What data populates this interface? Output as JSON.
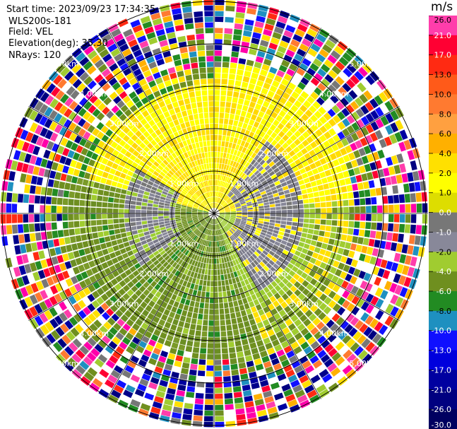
{
  "header": {
    "start_time": "Start time: 2023/09/23 17:34:35",
    "instrument": "WLS200s-181",
    "field": "Field: VEL",
    "elevation": "Elevation(deg): 35.30",
    "nrays": "NRays: 120"
  },
  "colorbar": {
    "unit": "m/s",
    "ticks": [
      "26.0",
      "21.0",
      "17.0",
      "13.0",
      "10.0",
      "8.0",
      "6.0",
      "4.0",
      "2.0",
      "1.0",
      "0.0",
      "-1.0",
      "-2.0",
      "-4.0",
      "-6.0",
      "-8.0",
      "-10.0",
      "-13.0",
      "-17.0",
      "-21.0",
      "-26.0",
      "-30.0"
    ],
    "colors": [
      "#ff3dab",
      "#ff0033",
      "#ff2a12",
      "#ff5a19",
      "#ff7a30",
      "#ffa040",
      "#ffb000",
      "#ffe000",
      "#ffff00",
      "#dddd00",
      "#777777",
      "#888899",
      "#a0cc30",
      "#6f8f1f",
      "#228b22",
      "#1e90c0",
      "#1010ff",
      "#0000dd",
      "#0000a0",
      "#000080",
      "#000060"
    ]
  },
  "chart_data": {
    "type": "heatmap",
    "projection": "polar PPI",
    "field": "VEL",
    "nrays": 120,
    "range_ring_labels": [
      "1.00km",
      "2.00km",
      "3.00km",
      "4.00km",
      "5.00km"
    ],
    "velocity_regions": [
      {
        "sector": "north, inner 0-3 km",
        "approx_value_ms": 2.0
      },
      {
        "sector": "south, inner 0-3 km",
        "approx_value_ms": -2.0
      },
      {
        "sector": "east-west near center",
        "approx_value_ms": 0.0
      },
      {
        "sector": "outer 3-5 km",
        "approx_value_ms": "noise"
      }
    ]
  }
}
